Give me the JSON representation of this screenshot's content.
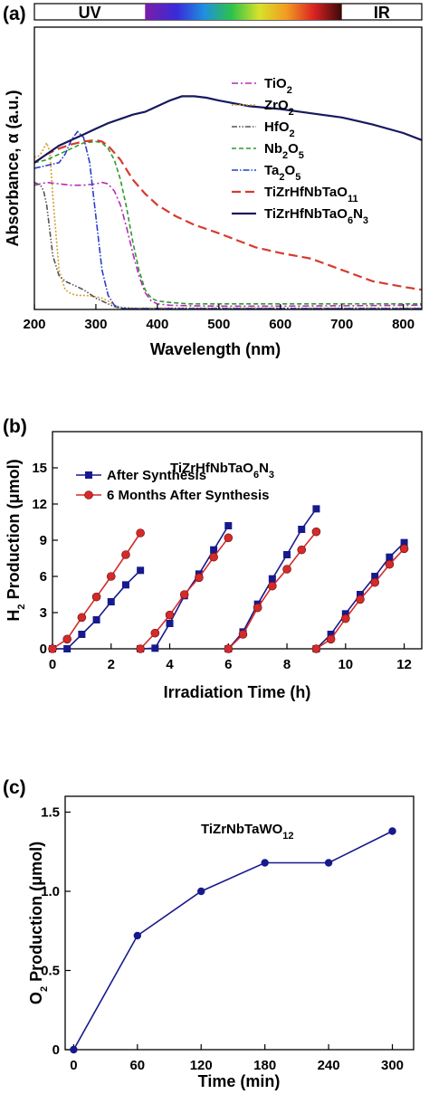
{
  "chart_data": [
    {
      "panel_label": "(a)",
      "type": "line",
      "xlabel": "Wavelength (nm)",
      "ylabel": "Absorbance, α (a.u.)",
      "xlim": [
        200,
        830
      ],
      "ylim": [
        0,
        1.0
      ],
      "xticks": [
        200,
        300,
        400,
        500,
        600,
        700,
        800
      ],
      "y_ticks_shown": false,
      "spectrum_bar": {
        "labels": [
          "UV",
          "IR"
        ],
        "uv_end": 380,
        "ir_start": 700
      },
      "legend_position": "right",
      "series": [
        {
          "name": "TiO₂",
          "legend_name_parts": [
            "TiO",
            "2"
          ],
          "color": "#b22eb2",
          "dash": "7,3,2,3",
          "x": [
            200,
            220,
            240,
            260,
            280,
            300,
            310,
            320,
            330,
            340,
            350,
            360,
            370,
            380,
            390,
            400,
            420,
            450,
            500,
            600,
            700,
            830
          ],
          "y": [
            0.44,
            0.45,
            0.445,
            0.44,
            0.44,
            0.445,
            0.45,
            0.445,
            0.42,
            0.37,
            0.29,
            0.2,
            0.12,
            0.06,
            0.03,
            0.02,
            0.015,
            0.013,
            0.012,
            0.012,
            0.013,
            0.015
          ]
        },
        {
          "name": "ZrO₂",
          "legend_name_parts": [
            "ZrO",
            "2"
          ],
          "color": "#d4a033",
          "dash": "2,2",
          "x": [
            200,
            205,
            210,
            215,
            220,
            225,
            230,
            240,
            250,
            260,
            270,
            280,
            290,
            300,
            310,
            320,
            330,
            340,
            360,
            400,
            500,
            830
          ],
          "y": [
            0.54,
            0.54,
            0.55,
            0.57,
            0.59,
            0.56,
            0.4,
            0.14,
            0.07,
            0.055,
            0.05,
            0.05,
            0.048,
            0.045,
            0.04,
            0.03,
            0.015,
            0.008,
            0.005,
            0.005,
            0.005,
            0.005
          ]
        },
        {
          "name": "HfO₂",
          "legend_name_parts": [
            "HfO",
            "2"
          ],
          "color": "#555555",
          "dash": "6,2,1.5,2,1.5,2",
          "x": [
            200,
            210,
            215,
            220,
            225,
            230,
            240,
            250,
            260,
            270,
            280,
            290,
            300,
            310,
            320,
            330,
            340,
            360,
            400,
            500,
            830
          ],
          "y": [
            0.45,
            0.44,
            0.42,
            0.37,
            0.28,
            0.19,
            0.12,
            0.1,
            0.09,
            0.08,
            0.07,
            0.055,
            0.04,
            0.03,
            0.02,
            0.01,
            0.005,
            0.003,
            0.003,
            0.003,
            0.003
          ]
        },
        {
          "name": "Nb₂O₅",
          "legend_name_parts": [
            "Nb",
            "2",
            "O",
            "5"
          ],
          "color": "#2e9a2e",
          "dash": "5,3",
          "x": [
            200,
            220,
            240,
            260,
            280,
            300,
            310,
            320,
            330,
            340,
            350,
            360,
            370,
            380,
            390,
            400,
            420,
            450,
            500,
            600,
            700,
            830
          ],
          "y": [
            0.52,
            0.53,
            0.55,
            0.57,
            0.59,
            0.595,
            0.59,
            0.57,
            0.53,
            0.46,
            0.36,
            0.24,
            0.14,
            0.07,
            0.04,
            0.03,
            0.025,
            0.02,
            0.02,
            0.02,
            0.02,
            0.02
          ]
        },
        {
          "name": "Ta₂O₅",
          "legend_name_parts": [
            "Ta",
            "2",
            "O",
            "5"
          ],
          "color": "#2a3ec8",
          "dash": "7,2,1.5,2",
          "x": [
            200,
            220,
            240,
            250,
            260,
            270,
            280,
            290,
            300,
            310,
            320,
            330,
            340,
            350,
            370,
            400,
            500,
            830
          ],
          "y": [
            0.5,
            0.51,
            0.52,
            0.55,
            0.6,
            0.63,
            0.61,
            0.52,
            0.33,
            0.14,
            0.05,
            0.015,
            0.005,
            0.003,
            0.003,
            0.003,
            0.003,
            0.003
          ]
        },
        {
          "name": "TiZrHfNbTaO₁₁",
          "legend_name_parts": [
            "TiZrHfNbTaO",
            "11"
          ],
          "color": "#d63a2e",
          "dash": "10,5",
          "x": [
            200,
            220,
            240,
            260,
            280,
            300,
            310,
            320,
            340,
            360,
            380,
            400,
            430,
            460,
            500,
            530,
            560,
            600,
            650,
            700,
            750,
            800,
            830
          ],
          "y": [
            0.52,
            0.55,
            0.57,
            0.585,
            0.595,
            0.6,
            0.595,
            0.58,
            0.53,
            0.46,
            0.41,
            0.37,
            0.33,
            0.3,
            0.27,
            0.245,
            0.22,
            0.2,
            0.18,
            0.14,
            0.1,
            0.08,
            0.07
          ]
        },
        {
          "name": "TiZrHfNbTaO₆N₃",
          "legend_name_parts": [
            "TiZrHfNbTaO",
            "6",
            "N",
            "3"
          ],
          "color": "#17195e",
          "dash": "",
          "x": [
            200,
            220,
            240,
            260,
            280,
            300,
            320,
            340,
            360,
            380,
            400,
            420,
            440,
            460,
            480,
            500,
            550,
            600,
            650,
            700,
            750,
            800,
            830
          ],
          "y": [
            0.52,
            0.55,
            0.58,
            0.6,
            0.62,
            0.64,
            0.66,
            0.675,
            0.69,
            0.7,
            0.72,
            0.74,
            0.755,
            0.755,
            0.75,
            0.74,
            0.72,
            0.71,
            0.695,
            0.68,
            0.655,
            0.625,
            0.6
          ]
        }
      ]
    },
    {
      "panel_label": "(b)",
      "type": "line",
      "xlabel": "Irradiation Time (h)",
      "ylabel": "H₂ Production (μmol)",
      "ylabel_parts": [
        "H",
        "2",
        " Production (μmol)"
      ],
      "xlim": [
        0,
        12.6
      ],
      "ylim": [
        0,
        18
      ],
      "xticks": [
        0,
        2,
        4,
        6,
        8,
        10,
        12
      ],
      "yticks": [
        0,
        3,
        6,
        9,
        12,
        15
      ],
      "sample_label_parts": [
        "TiZrHfNbTaO",
        "6",
        "N",
        "3"
      ],
      "legend_position": "top-left",
      "series": [
        {
          "name": "After Synthesis",
          "color": "#161a8c",
          "marker": "square",
          "cycles": [
            {
              "x": [
                0,
                0.5,
                1,
                1.5,
                2,
                2.5,
                3
              ],
              "y": [
                0,
                0,
                1.2,
                2.4,
                3.9,
                5.3,
                6.5
              ]
            },
            {
              "x": [
                3,
                3.5,
                4,
                4.5,
                5,
                5.5,
                6
              ],
              "y": [
                0,
                0.05,
                2.1,
                4.4,
                6.2,
                8.2,
                10.2
              ]
            },
            {
              "x": [
                6,
                6.5,
                7,
                7.5,
                8,
                8.5,
                9
              ],
              "y": [
                0,
                1.4,
                3.7,
                5.8,
                7.8,
                9.9,
                11.6
              ]
            },
            {
              "x": [
                9,
                9.5,
                10,
                10.5,
                11,
                11.5,
                12
              ],
              "y": [
                0,
                1.2,
                2.9,
                4.5,
                6.0,
                7.6,
                8.8
              ]
            }
          ]
        },
        {
          "name": "6 Months After Synthesis",
          "color": "#d42a2a",
          "marker": "circle",
          "cycles": [
            {
              "x": [
                0,
                0.5,
                1,
                1.5,
                2,
                2.5,
                3
              ],
              "y": [
                0,
                0.8,
                2.6,
                4.3,
                6.0,
                7.8,
                9.6
              ]
            },
            {
              "x": [
                3,
                3.5,
                4,
                4.5,
                5,
                5.5,
                6
              ],
              "y": [
                0,
                1.3,
                2.8,
                4.5,
                5.9,
                7.6,
                9.2
              ]
            },
            {
              "x": [
                6,
                6.5,
                7,
                7.5,
                8,
                8.5,
                9
              ],
              "y": [
                0,
                1.2,
                3.4,
                5.2,
                6.6,
                8.2,
                9.7
              ]
            },
            {
              "x": [
                9,
                9.5,
                10,
                10.5,
                11,
                11.5,
                12
              ],
              "y": [
                0,
                0.8,
                2.5,
                4.1,
                5.5,
                7.0,
                8.3
              ]
            }
          ]
        }
      ]
    },
    {
      "panel_label": "(c)",
      "type": "line",
      "xlabel": "Time (min)",
      "ylabel": "O₂ Production (μmol)",
      "ylabel_parts": [
        "O",
        "2",
        " Production (μmol)"
      ],
      "xlim": [
        -8,
        320
      ],
      "ylim": [
        0,
        1.6
      ],
      "xticks": [
        0,
        60,
        120,
        180,
        240,
        300
      ],
      "yticks": [
        0,
        0.5,
        1.0,
        1.5
      ],
      "ytick_labels": [
        "0",
        "0.5",
        "1.0",
        "1.5"
      ],
      "sample_label_parts": [
        "TiZrNbTaWO",
        "12"
      ],
      "series": [
        {
          "color": "#161a8c",
          "marker": "circle",
          "x": [
            0,
            60,
            120,
            180,
            240,
            300
          ],
          "y": [
            0,
            0.72,
            1.0,
            1.18,
            1.18,
            1.38
          ]
        }
      ]
    }
  ]
}
